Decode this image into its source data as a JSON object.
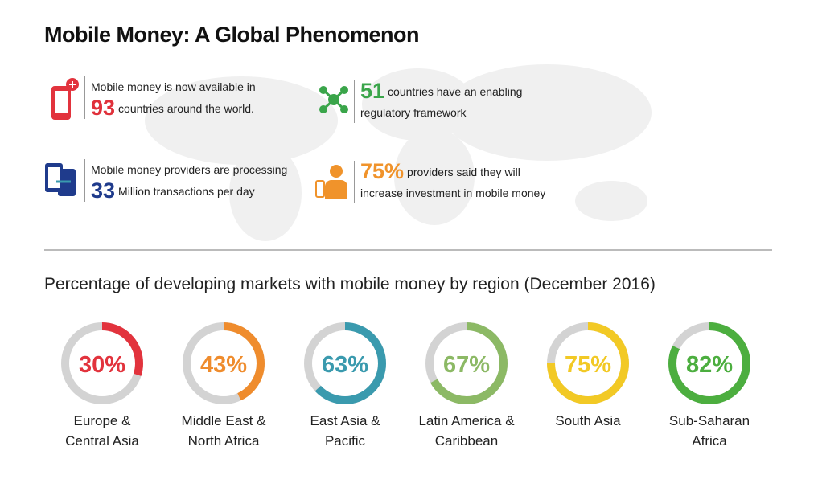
{
  "title": "Mobile Money: A Global Phenomenon",
  "facts": [
    {
      "text1": "Mobile money is now available in",
      "number": "93",
      "text2": "countries around the world."
    },
    {
      "number": "51",
      "text1": "countries have an enabling",
      "text2": "regulatory framework"
    },
    {
      "text1": "Mobile money providers are processing",
      "number": "33",
      "text2": "Million transactions per day"
    },
    {
      "number": "75%",
      "text1": "providers said they will",
      "text2": "increase investment in mobile money"
    }
  ],
  "chart_data": {
    "type": "donut",
    "title": "Percentage of developing markets with mobile money  by region (December 2016)",
    "categories": [
      [
        "Europe &",
        "Central Asia"
      ],
      [
        "Middle East &",
        "North Africa"
      ],
      [
        "East Asia &",
        "Pacific"
      ],
      [
        "Latin America &",
        "Caribbean"
      ],
      [
        "South Asia"
      ],
      [
        "Sub-Saharan",
        "Africa"
      ]
    ],
    "values": [
      30,
      43,
      63,
      67,
      75,
      82
    ],
    "value_labels": [
      "30%",
      "43%",
      "63%",
      "67%",
      "75%",
      "82%"
    ],
    "colors": [
      "#e2333d",
      "#ef8c2d",
      "#3a9aae",
      "#8cb965",
      "#f2c925",
      "#4cae3f"
    ],
    "track_color": "#d3d3d3"
  }
}
